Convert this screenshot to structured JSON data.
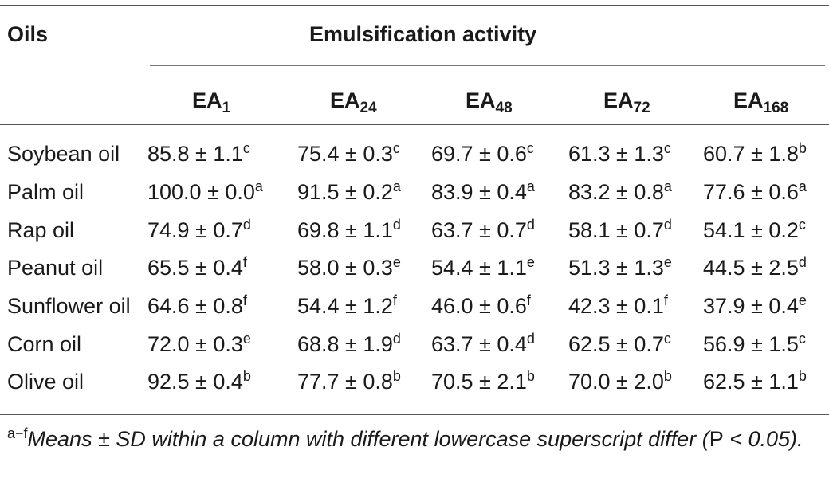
{
  "table": {
    "header": {
      "row_label": "Oils",
      "group_label": "Emulsification activity",
      "columns": [
        {
          "base": "EA",
          "sub": "1"
        },
        {
          "base": "EA",
          "sub": "24"
        },
        {
          "base": "EA",
          "sub": "48"
        },
        {
          "base": "EA",
          "sub": "72"
        },
        {
          "base": "EA",
          "sub": "168"
        }
      ]
    },
    "rows": [
      {
        "oil": "Soybean oil",
        "cells": [
          {
            "v": "85.8 ± 1.1",
            "s": "c"
          },
          {
            "v": "75.4 ± 0.3",
            "s": "c"
          },
          {
            "v": "69.7 ± 0.6",
            "s": "c"
          },
          {
            "v": "61.3 ± 1.3",
            "s": "c"
          },
          {
            "v": "60.7 ± 1.8",
            "s": "b"
          }
        ]
      },
      {
        "oil": "Palm oil",
        "cells": [
          {
            "v": "100.0 ± 0.0",
            "s": "a"
          },
          {
            "v": "91.5 ± 0.2",
            "s": "a"
          },
          {
            "v": "83.9 ± 0.4",
            "s": "a"
          },
          {
            "v": "83.2 ± 0.8",
            "s": "a"
          },
          {
            "v": "77.6 ± 0.6",
            "s": "a"
          }
        ]
      },
      {
        "oil": "Rap oil",
        "cells": [
          {
            "v": "74.9 ± 0.7",
            "s": "d"
          },
          {
            "v": "69.8 ± 1.1",
            "s": "d"
          },
          {
            "v": "63.7 ± 0.7",
            "s": "d"
          },
          {
            "v": "58.1 ± 0.7",
            "s": "d"
          },
          {
            "v": "54.1 ± 0.2",
            "s": "c"
          }
        ]
      },
      {
        "oil": "Peanut oil",
        "cells": [
          {
            "v": "65.5 ± 0.4",
            "s": "f"
          },
          {
            "v": "58.0 ± 0.3",
            "s": "e"
          },
          {
            "v": "54.4 ± 1.1",
            "s": "e"
          },
          {
            "v": "51.3 ± 1.3",
            "s": "e"
          },
          {
            "v": "44.5 ± 2.5",
            "s": "d"
          }
        ]
      },
      {
        "oil": "Sunflower oil",
        "cells": [
          {
            "v": "64.6 ± 0.8",
            "s": "f"
          },
          {
            "v": "54.4 ± 1.2",
            "s": "f"
          },
          {
            "v": "46.0 ± 0.6",
            "s": "f"
          },
          {
            "v": "42.3 ± 0.1",
            "s": "f"
          },
          {
            "v": "37.9 ± 0.4",
            "s": "e"
          }
        ]
      },
      {
        "oil": "Corn oil",
        "cells": [
          {
            "v": "72.0 ± 0.3",
            "s": "e"
          },
          {
            "v": "68.8 ± 1.9",
            "s": "d"
          },
          {
            "v": "63.7 ± 0.4",
            "s": "d"
          },
          {
            "v": "62.5 ± 0.7",
            "s": "c"
          },
          {
            "v": "56.9 ± 1.5",
            "s": "c"
          }
        ]
      },
      {
        "oil": "Olive oil",
        "cells": [
          {
            "v": "92.5 ± 0.4",
            "s": "b"
          },
          {
            "v": "77.7 ± 0.8",
            "s": "b"
          },
          {
            "v": "70.5 ± 2.1",
            "s": "b"
          },
          {
            "v": "70.0 ± 2.0",
            "s": "b"
          },
          {
            "v": "62.5 ± 1.1",
            "s": "b"
          }
        ]
      }
    ]
  },
  "footnote": {
    "sup": "a−f",
    "text_before": "Means ± SD within a column with different lowercase superscript differ (",
    "p_letter": "P",
    "text_after": " < 0.05)."
  }
}
